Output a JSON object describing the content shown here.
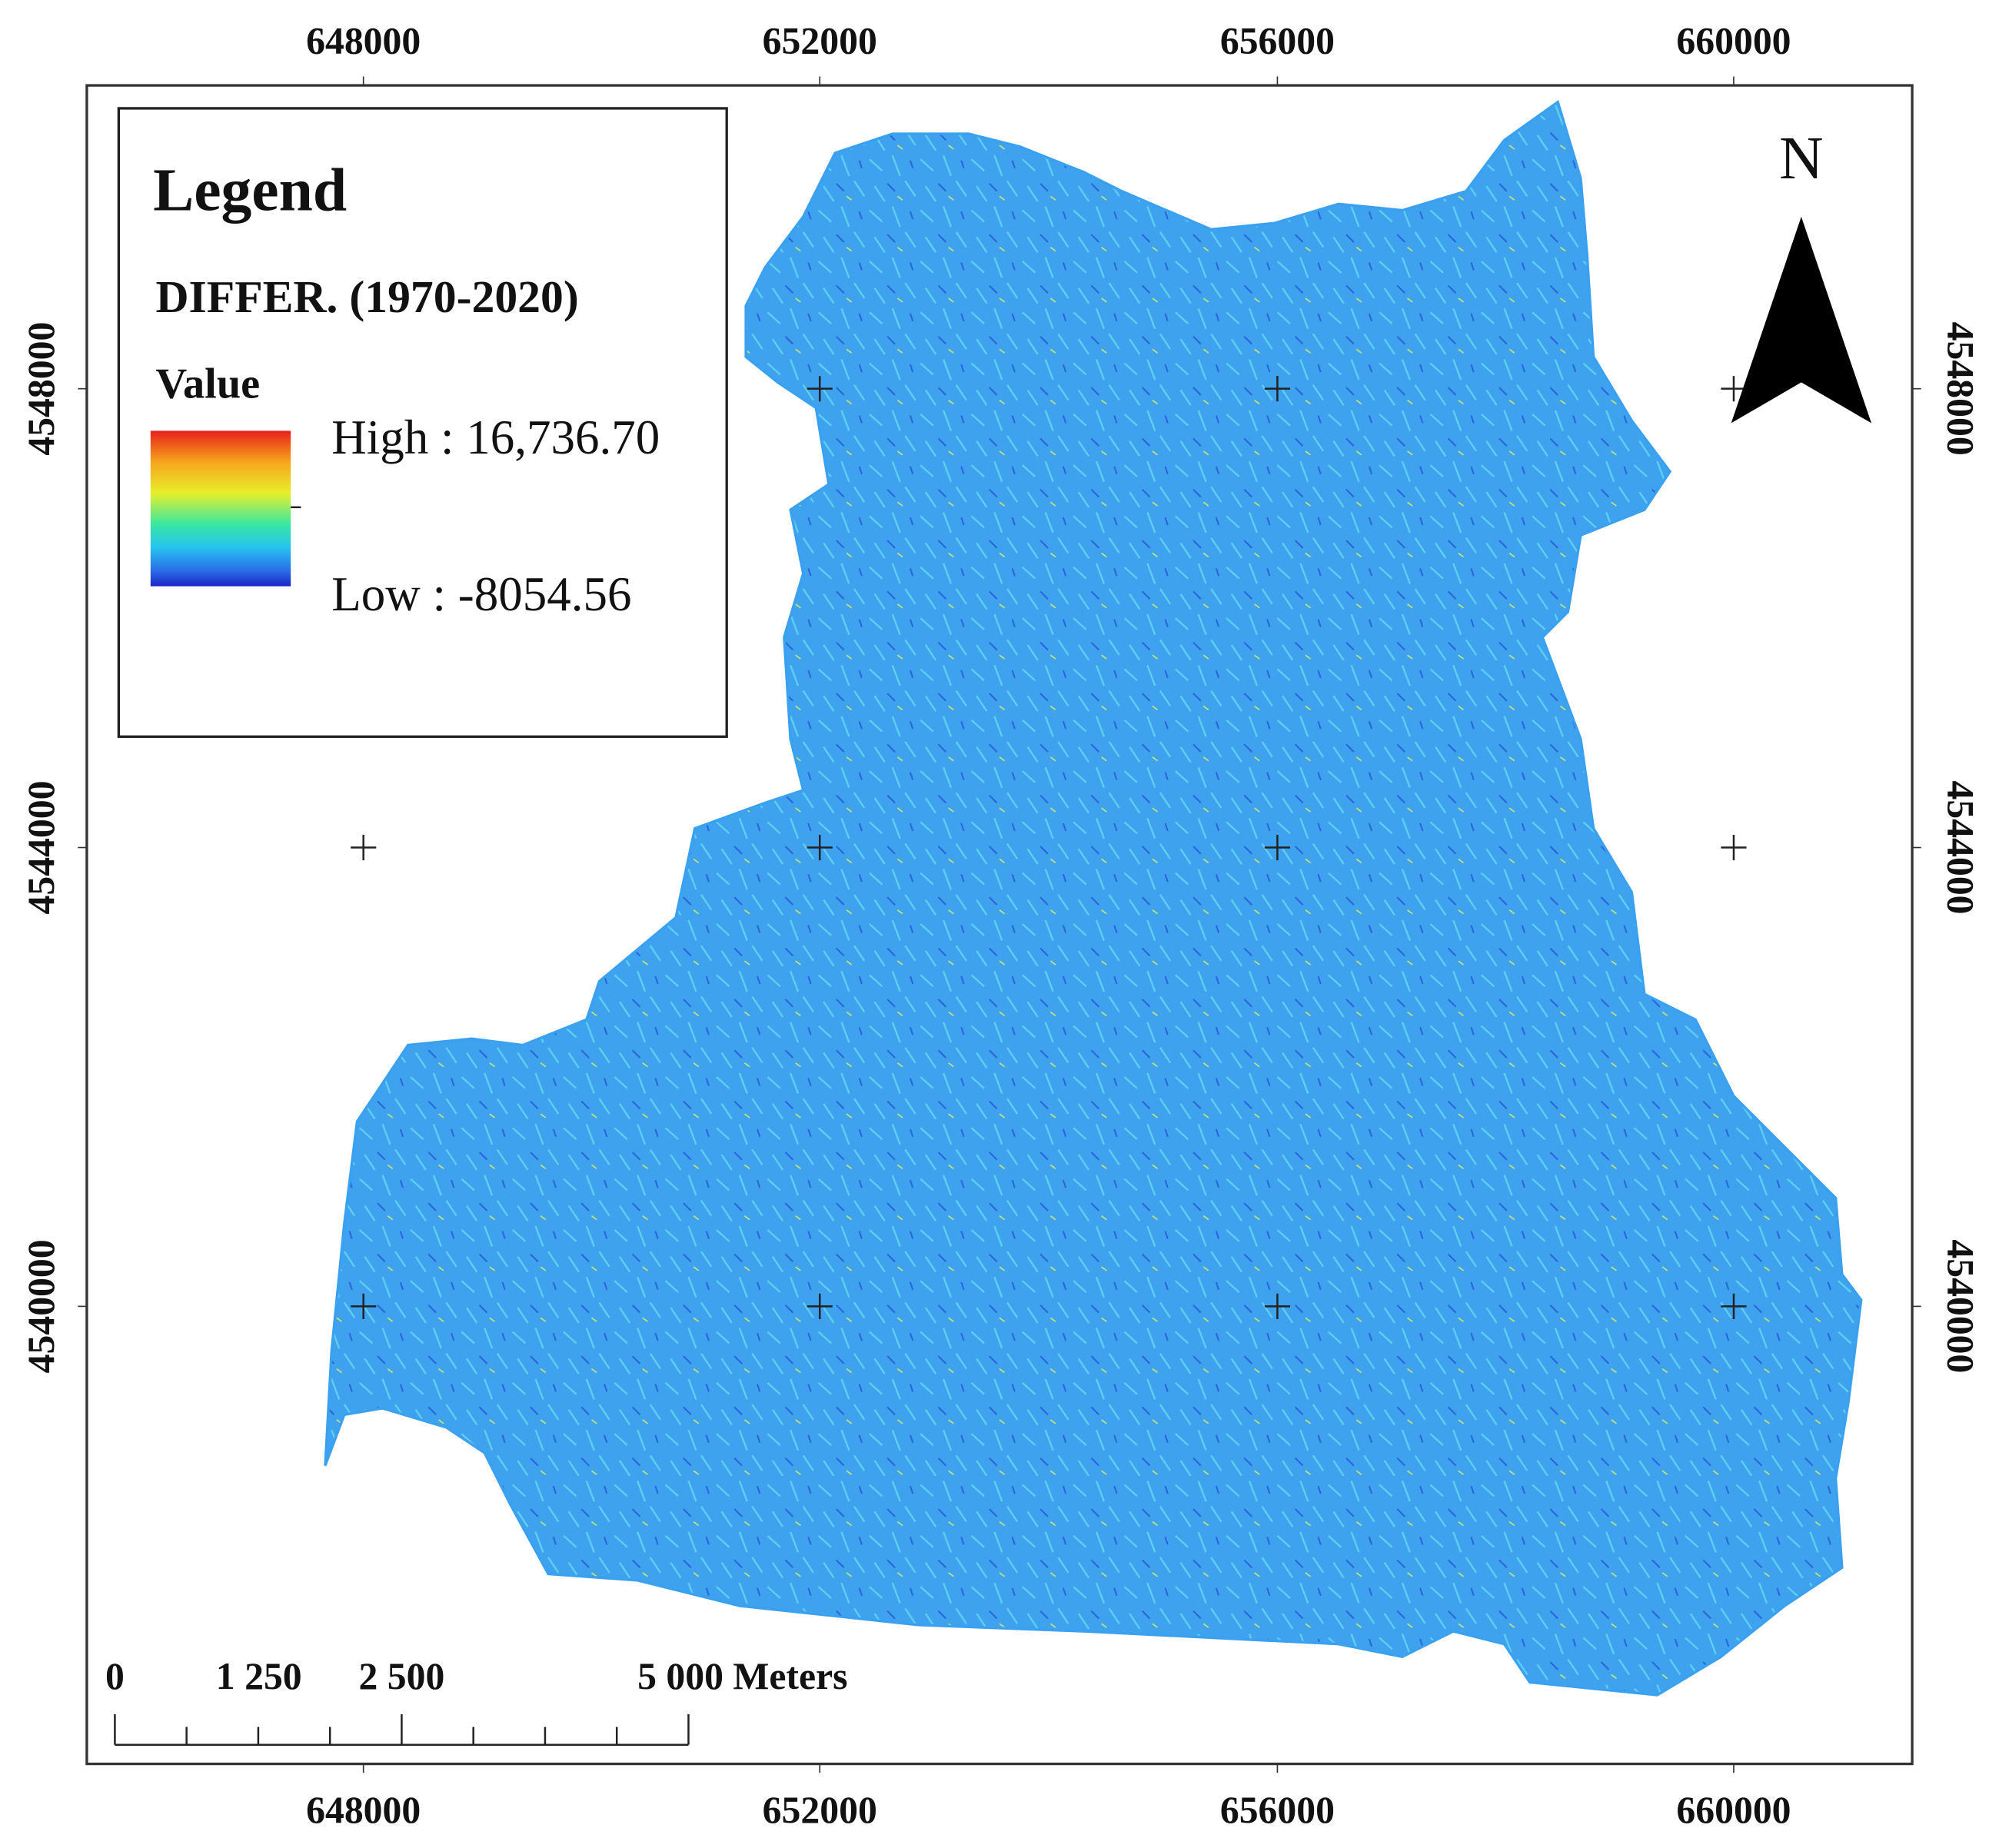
{
  "x_labels": {
    "top": [
      648000,
      652000,
      656000,
      660000
    ],
    "bottom": [
      648000,
      652000,
      656000,
      660000
    ]
  },
  "y_labels": {
    "left": [
      4548000,
      4544000,
      4540000
    ],
    "right": [
      4548000,
      4544000,
      4540000
    ]
  },
  "legend": {
    "title": "Legend",
    "layer": "DIFFER. (1970-2020)",
    "field": "Value",
    "high": "High : 16,736.70",
    "low": "Low : -8054.56"
  },
  "north": "N",
  "scale_bar": [
    "0",
    "1 250",
    "2 500",
    "5 000 Meters"
  ]
}
